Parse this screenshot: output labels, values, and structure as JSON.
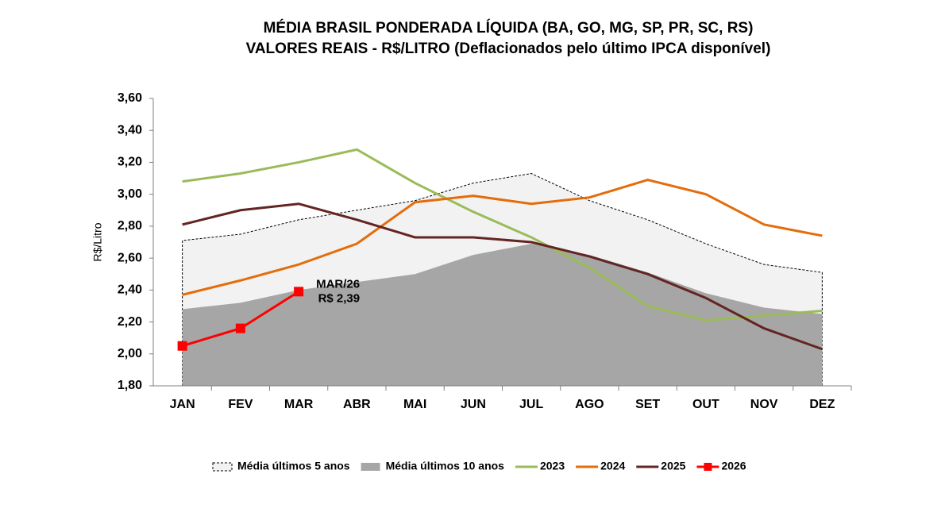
{
  "chart_data": {
    "type": "line",
    "title": [
      "MÉDIA BRASIL PONDERADA LÍQUIDA (BA, GO, MG, SP, PR, SC, RS)",
      "VALORES REAIS - R$/LITRO (Deflacionados pelo último IPCA disponível)"
    ],
    "y_label": "R$/Litro",
    "categories": [
      "JAN",
      "FEV",
      "MAR",
      "ABR",
      "MAI",
      "JUN",
      "JUL",
      "AGO",
      "SET",
      "OUT",
      "NOV",
      "DEZ"
    ],
    "ylim": [
      1.8,
      3.6
    ],
    "yticks": [
      {
        "value": 1.8,
        "label": "1,80"
      },
      {
        "value": 2.0,
        "label": "2,00"
      },
      {
        "value": 2.2,
        "label": "2,20"
      },
      {
        "value": 2.4,
        "label": "2,40"
      },
      {
        "value": 2.6,
        "label": "2,60"
      },
      {
        "value": 2.8,
        "label": "2,80"
      },
      {
        "value": 3.0,
        "label": "3,00"
      },
      {
        "value": 3.2,
        "label": "3,20"
      },
      {
        "value": 3.4,
        "label": "3,40"
      },
      {
        "value": 3.6,
        "label": "3,60"
      }
    ],
    "series": [
      {
        "name": "Média últimos 5 anos",
        "style": "area-dashed",
        "color": "#f2f2f2",
        "values": [
          2.71,
          2.75,
          2.84,
          2.9,
          2.96,
          3.07,
          3.13,
          2.96,
          2.84,
          2.69,
          2.56,
          2.51
        ]
      },
      {
        "name": "Média últimos 10 anos",
        "style": "area",
        "color": "#a6a6a6",
        "values": [
          2.28,
          2.32,
          2.4,
          2.45,
          2.5,
          2.62,
          2.69,
          2.62,
          2.51,
          2.38,
          2.29,
          2.25
        ]
      },
      {
        "name": "2023",
        "style": "line",
        "color": "#9bbb59",
        "values": [
          3.08,
          3.13,
          3.2,
          3.28,
          3.07,
          2.89,
          2.73,
          2.54,
          2.3,
          2.21,
          2.24,
          2.27
        ]
      },
      {
        "name": "2024",
        "style": "line",
        "color": "#e46c0a",
        "values": [
          2.37,
          2.46,
          2.56,
          2.69,
          2.95,
          2.99,
          2.94,
          2.98,
          3.09,
          3.0,
          2.81,
          2.74
        ]
      },
      {
        "name": "2025",
        "style": "line",
        "color": "#632523",
        "values": [
          2.81,
          2.9,
          2.94,
          2.84,
          2.73,
          2.73,
          2.7,
          2.61,
          2.5,
          2.35,
          2.16,
          2.03
        ]
      },
      {
        "name": "2026",
        "style": "line-marker",
        "color": "#ff0000",
        "values": [
          2.05,
          2.16,
          2.39,
          null,
          null,
          null,
          null,
          null,
          null,
          null,
          null,
          null
        ]
      }
    ],
    "annotation": {
      "index": 2,
      "series": 5,
      "lines": [
        "MAR/26",
        "R$ 2,39"
      ]
    }
  }
}
